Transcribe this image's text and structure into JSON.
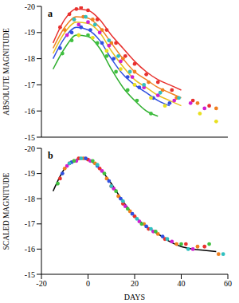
{
  "chart_data": [
    {
      "type": "scatter",
      "title": "a",
      "y_label": "ABSOLUTE MAGNITUDE",
      "xlim": [
        -20,
        60
      ],
      "xticks": [
        -20,
        0,
        20,
        40,
        60
      ],
      "ylim": [
        -20,
        -15
      ],
      "yticks": [
        -20,
        -19,
        -18,
        -17,
        -16,
        -15
      ],
      "tick_labels": "y",
      "series": [
        {
          "type": "line",
          "color": "#e8312e",
          "x": [
            -15,
            -10,
            -5,
            0,
            5,
            10,
            15,
            20,
            25,
            30,
            35,
            40
          ],
          "values": [
            -18.6,
            -19.5,
            -19.9,
            -19.85,
            -19.5,
            -18.9,
            -18.4,
            -17.9,
            -17.5,
            -17.2,
            -17.0,
            -16.8
          ]
        },
        {
          "type": "line",
          "color": "#f08020",
          "x": [
            -15,
            -10,
            -5,
            0,
            5,
            10,
            15,
            20,
            25,
            30,
            35,
            40
          ],
          "values": [
            -18.4,
            -19.2,
            -19.6,
            -19.55,
            -19.2,
            -18.6,
            -18.0,
            -17.5,
            -17.2,
            -16.9,
            -16.7,
            -16.5
          ]
        },
        {
          "type": "line",
          "color": "#e8c020",
          "x": [
            -15,
            -10,
            -5,
            0,
            5,
            10,
            15,
            20,
            25,
            30,
            35,
            40
          ],
          "values": [
            -18.2,
            -19.0,
            -19.4,
            -19.35,
            -19.0,
            -18.3,
            -17.7,
            -17.2,
            -16.9,
            -16.6,
            -16.4,
            -16.2
          ]
        },
        {
          "type": "line",
          "color": "#3050e0",
          "x": [
            -15,
            -10,
            -5,
            0,
            5,
            10,
            15,
            20,
            25,
            30,
            35,
            40
          ],
          "values": [
            -18.0,
            -18.8,
            -19.2,
            -19.1,
            -18.7,
            -18.0,
            -17.4,
            -17.0,
            -16.7,
            -16.4,
            -16.2,
            null
          ]
        },
        {
          "type": "line",
          "color": "#30b030",
          "x": [
            -15,
            -10,
            -5,
            0,
            5,
            10,
            15,
            20,
            25,
            30,
            35,
            40
          ],
          "values": [
            -17.6,
            -18.4,
            -18.9,
            -18.85,
            -18.4,
            -17.6,
            -16.9,
            -16.4,
            -16.0,
            -15.8,
            null,
            null
          ]
        },
        {
          "type": "scatter",
          "color": "#e8312e",
          "x": [
            -12,
            -8,
            -5,
            -3,
            0,
            4,
            8,
            12,
            16,
            20,
            25,
            30,
            36,
            45,
            52
          ],
          "values": [
            -19.2,
            -19.7,
            -19.9,
            -19.95,
            -19.85,
            -19.5,
            -19.1,
            -18.6,
            -18.1,
            -17.8,
            -17.4,
            -17.1,
            -16.8,
            -16.4,
            -16.2
          ]
        },
        {
          "type": "scatter",
          "color": "#f08020",
          "x": [
            -10,
            -6,
            -2,
            2,
            6,
            10,
            15,
            20,
            26,
            32,
            38,
            47,
            55
          ],
          "values": [
            -19.1,
            -19.5,
            -19.6,
            -19.5,
            -19.1,
            -18.6,
            -18.0,
            -17.5,
            -17.1,
            -16.8,
            -16.5,
            -16.3,
            -16.1
          ]
        },
        {
          "type": "scatter",
          "color": "#d020d0",
          "x": [
            -9,
            -4,
            0,
            5,
            9,
            14,
            19,
            24,
            30,
            37,
            44,
            50
          ],
          "values": [
            -18.9,
            -19.3,
            -19.4,
            -19.0,
            -18.5,
            -17.9,
            -17.3,
            -16.9,
            -16.6,
            -16.4,
            -16.3,
            -16.1
          ]
        },
        {
          "type": "scatter",
          "color": "#3050e0",
          "x": [
            -12,
            -7,
            -3,
            1,
            6,
            11,
            17,
            22,
            28,
            35
          ],
          "values": [
            -18.4,
            -19.0,
            -19.2,
            -19.1,
            -18.6,
            -18.0,
            -17.3,
            -16.9,
            -16.5,
            -16.3
          ]
        },
        {
          "type": "scatter",
          "color": "#40c040",
          "x": [
            -11,
            -7,
            -4,
            0,
            4,
            8,
            12,
            17,
            21,
            27
          ],
          "values": [
            -18.2,
            -18.7,
            -18.9,
            -18.9,
            -18.6,
            -18.1,
            -17.5,
            -16.8,
            -16.4,
            -15.9
          ]
        },
        {
          "type": "scatter",
          "color": "#e8e020",
          "x": [
            -4,
            2,
            8,
            14,
            20,
            27,
            33,
            48,
            55
          ],
          "values": [
            -18.9,
            -18.8,
            -18.3,
            -17.6,
            -17.0,
            -16.5,
            -16.2,
            -15.9,
            -15.6
          ]
        },
        {
          "type": "scatter",
          "color": "#30c0c0",
          "x": [
            -6,
            -1,
            3,
            9,
            13,
            18,
            24,
            31,
            39
          ],
          "values": [
            -19.5,
            -19.6,
            -19.3,
            -18.7,
            -18.1,
            -17.5,
            -17.0,
            -16.7,
            -16.5
          ]
        }
      ]
    },
    {
      "type": "scatter",
      "title": "b",
      "x_label": "DAYS",
      "y_label": "SCALED MAGNITUDE",
      "xlim": [
        -20,
        60
      ],
      "xticks": [
        -20,
        0,
        20,
        40,
        60
      ],
      "ylim": [
        -20,
        -15
      ],
      "yticks": [
        -20,
        -19,
        -18,
        -17,
        -16,
        -15
      ],
      "series": [
        {
          "type": "line",
          "color": "#000000",
          "x": [
            -15,
            -10,
            -5,
            -3,
            0,
            5,
            10,
            15,
            20,
            25,
            30,
            35,
            40,
            45,
            50,
            55
          ],
          "values": [
            -18.3,
            -19.2,
            -19.55,
            -19.6,
            -19.55,
            -19.2,
            -18.6,
            -17.9,
            -17.3,
            -16.9,
            -16.6,
            -16.3,
            -16.1,
            -16.0,
            -15.95,
            -15.9
          ]
        },
        {
          "type": "scatter",
          "color": "#e8312e",
          "x": [
            -12,
            -8,
            -4,
            0,
            5,
            10,
            15,
            20,
            26,
            33,
            42,
            50
          ],
          "values": [
            -18.8,
            -19.4,
            -19.6,
            -19.55,
            -19.2,
            -18.5,
            -17.8,
            -17.3,
            -16.8,
            -16.4,
            -16.2,
            -16.1
          ]
        },
        {
          "type": "scatter",
          "color": "#f08020",
          "x": [
            -10,
            -6,
            -2,
            3,
            8,
            13,
            18,
            24,
            30,
            38,
            47,
            56
          ],
          "values": [
            -19.2,
            -19.5,
            -19.6,
            -19.4,
            -18.8,
            -18.1,
            -17.5,
            -17.0,
            -16.6,
            -16.2,
            -16.1,
            -15.8
          ]
        },
        {
          "type": "scatter",
          "color": "#d020d0",
          "x": [
            -9,
            -5,
            1,
            6,
            11,
            16,
            22,
            28,
            36,
            45
          ],
          "values": [
            -19.3,
            -19.5,
            -19.5,
            -19.1,
            -18.4,
            -17.7,
            -17.1,
            -16.7,
            -16.3,
            -16.0
          ]
        },
        {
          "type": "scatter",
          "color": "#3050e0",
          "x": [
            -11,
            -7,
            -1,
            4,
            9,
            14,
            19,
            25,
            32
          ],
          "values": [
            -19.0,
            -19.45,
            -19.6,
            -19.3,
            -18.7,
            -18.0,
            -17.4,
            -16.9,
            -16.5
          ]
        },
        {
          "type": "scatter",
          "color": "#40c040",
          "x": [
            -13,
            -6,
            2,
            7,
            12,
            17,
            23,
            29,
            40,
            52
          ],
          "values": [
            -18.6,
            -19.5,
            -19.5,
            -19.0,
            -18.3,
            -17.6,
            -17.0,
            -16.7,
            -16.2,
            -16.2
          ]
        },
        {
          "type": "scatter",
          "color": "#30c0c0",
          "x": [
            -8,
            -3,
            4,
            10,
            15,
            21,
            27,
            34,
            43,
            58
          ],
          "values": [
            -19.4,
            -19.6,
            -19.35,
            -18.5,
            -17.9,
            -17.2,
            -16.8,
            -16.4,
            -16.0,
            -15.8
          ]
        }
      ]
    }
  ]
}
